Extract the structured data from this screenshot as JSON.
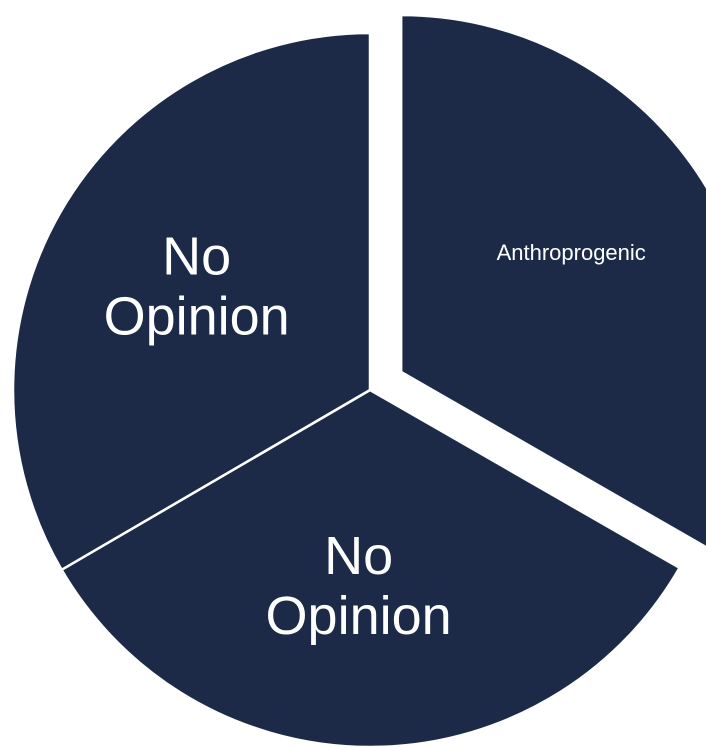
{
  "chart_data": {
    "type": "pie",
    "title": "",
    "categories": [
      "Anthroprogenic",
      "No Opinion",
      "No Opinion"
    ],
    "values": [
      33.3,
      33.3,
      33.4
    ],
    "exploded": [
      true,
      false,
      false
    ],
    "label_lines": [
      [
        "Anthroprogenic"
      ],
      [
        "No",
        "Opinion"
      ],
      [
        "No",
        "Opinion"
      ]
    ],
    "colors": [
      "#1c2a48",
      "#1c2a48",
      "#1c2a48"
    ],
    "label_color": "#ffffff",
    "background": "#ffffff",
    "start_angle_deg": 0,
    "direction": "clockwise",
    "legend": "none"
  }
}
